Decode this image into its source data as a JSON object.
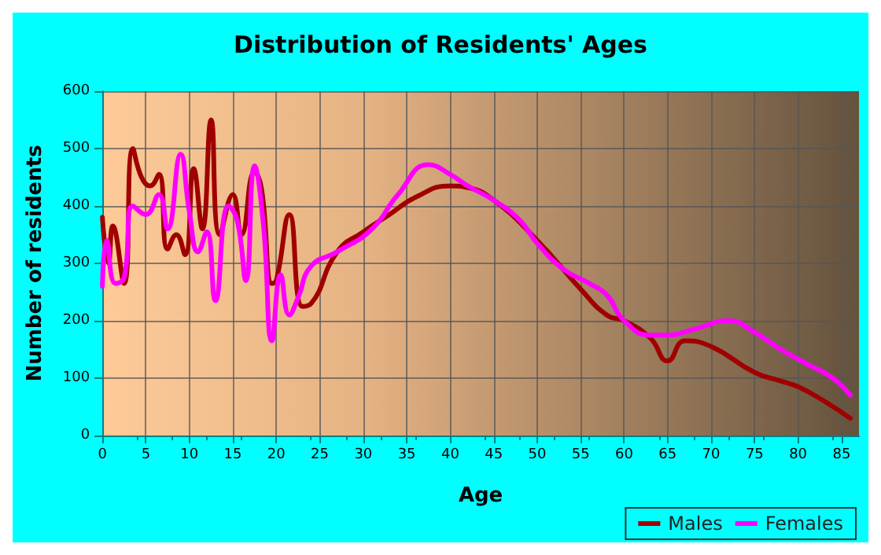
{
  "chart_data": {
    "type": "line",
    "title": "Distribution of Residents' Ages",
    "xlabel": "Age",
    "ylabel": "Number of residents",
    "xlim": [
      0,
      87
    ],
    "xticks": [
      0,
      5,
      10,
      15,
      20,
      25,
      30,
      35,
      40,
      45,
      50,
      55,
      60,
      65,
      70,
      75,
      80,
      85
    ],
    "ylim": [
      0,
      600
    ],
    "yticks": [
      0,
      100,
      200,
      300,
      400,
      500,
      600
    ],
    "grid": true,
    "legend": "bottom right",
    "marker": "none",
    "line_style": "solid",
    "series": [
      {
        "name": "Males",
        "color": "#a00000",
        "x": [
          0,
          0.7,
          1.2,
          2.5,
          3.5,
          4.5,
          5.5,
          6.5,
          7.5,
          8.5,
          9.5,
          10.5,
          11.5,
          12.5,
          13.5,
          15,
          16,
          17.5,
          18.3,
          19.5,
          20,
          21.5,
          23,
          24,
          27,
          30,
          33,
          36,
          40,
          42,
          45,
          50,
          55,
          58,
          60,
          63,
          65,
          67,
          70,
          75,
          78,
          80,
          83,
          86
        ],
        "values": [
          380,
          300,
          365,
          265,
          500,
          450,
          435,
          455,
          325,
          350,
          315,
          465,
          360,
          550,
          350,
          420,
          350,
          460,
          430,
          265,
          270,
          385,
          225,
          230,
          320,
          355,
          385,
          415,
          435,
          432,
          410,
          340,
          255,
          210,
          200,
          170,
          130,
          165,
          155,
          110,
          95,
          85,
          60,
          30
        ]
      },
      {
        "name": "Females",
        "color": "#ff00ff",
        "x": [
          0,
          0.5,
          1.5,
          2.5,
          3.5,
          5,
          6.5,
          7.5,
          9,
          10,
          11,
          12,
          13,
          14.5,
          15.5,
          16.5,
          17.5,
          18.5,
          19.5,
          20.5,
          21.5,
          22.5,
          24,
          27,
          31,
          34,
          37.5,
          40,
          42,
          45,
          48,
          50,
          53,
          56,
          58,
          60,
          63,
          65,
          68,
          72,
          75,
          78,
          81,
          84,
          86
        ],
        "values": [
          260,
          340,
          265,
          275,
          400,
          385,
          420,
          360,
          490,
          390,
          320,
          355,
          235,
          400,
          375,
          270,
          470,
          370,
          165,
          280,
          210,
          240,
          295,
          320,
          360,
          420,
          472,
          455,
          435,
          410,
          375,
          335,
          290,
          265,
          245,
          200,
          175,
          175,
          185,
          200,
          180,
          150,
          125,
          100,
          70
        ]
      }
    ]
  }
}
